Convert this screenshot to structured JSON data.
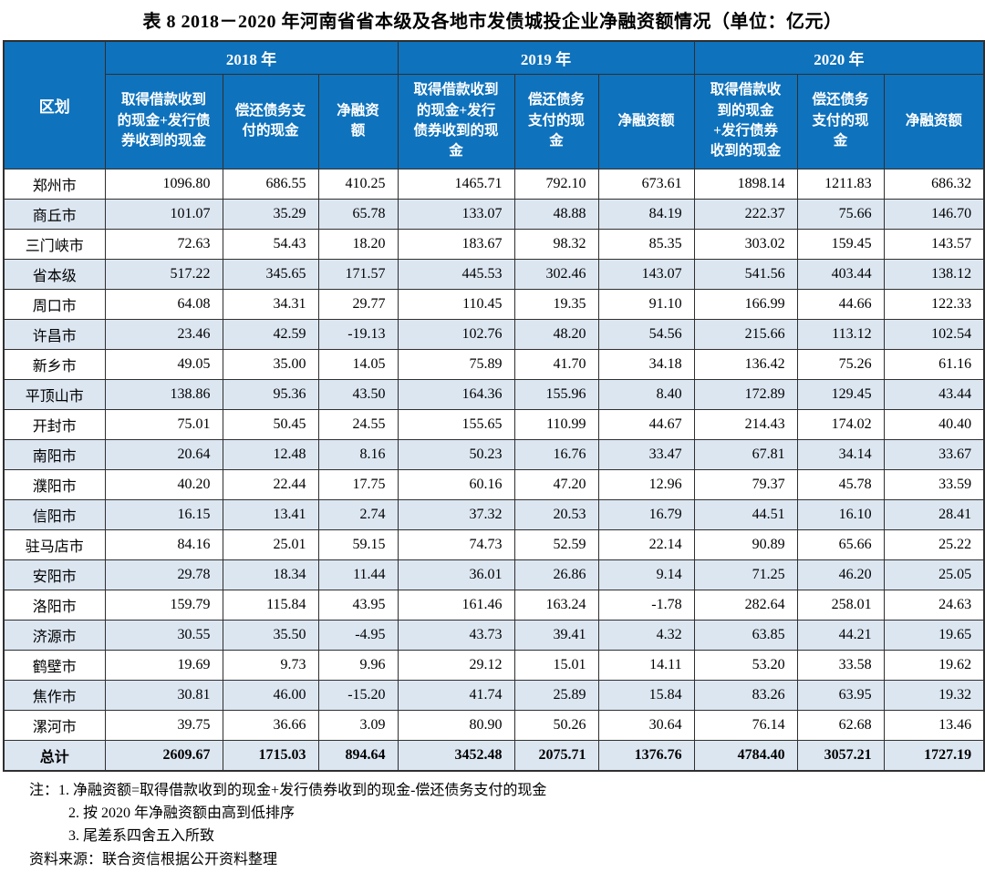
{
  "title": "表 8  2018－2020 年河南省省本级及各地市发债城投企业净融资额情况（单位：亿元）",
  "colors": {
    "header_blue": "#0f72bc",
    "band_row": "#dce6f1",
    "border": "#2f2f2f",
    "header_text": "#ffffff",
    "body_text": "#000000"
  },
  "table": {
    "region_header": "区划",
    "year_groups": [
      "2018 年",
      "2019 年",
      "2020 年"
    ],
    "sub_headers": [
      "取得借款收到的现金+发行债券收到的现金",
      "偿还债务支付的现金",
      "净融资额"
    ],
    "rows": [
      {
        "region": "郑州市",
        "values": [
          "1096.80",
          "686.55",
          "410.25",
          "1465.71",
          "792.10",
          "673.61",
          "1898.14",
          "1211.83",
          "686.32"
        ]
      },
      {
        "region": "商丘市",
        "values": [
          "101.07",
          "35.29",
          "65.78",
          "133.07",
          "48.88",
          "84.19",
          "222.37",
          "75.66",
          "146.70"
        ]
      },
      {
        "region": "三门峡市",
        "values": [
          "72.63",
          "54.43",
          "18.20",
          "183.67",
          "98.32",
          "85.35",
          "303.02",
          "159.45",
          "143.57"
        ]
      },
      {
        "region": "省本级",
        "values": [
          "517.22",
          "345.65",
          "171.57",
          "445.53",
          "302.46",
          "143.07",
          "541.56",
          "403.44",
          "138.12"
        ]
      },
      {
        "region": "周口市",
        "values": [
          "64.08",
          "34.31",
          "29.77",
          "110.45",
          "19.35",
          "91.10",
          "166.99",
          "44.66",
          "122.33"
        ]
      },
      {
        "region": "许昌市",
        "values": [
          "23.46",
          "42.59",
          "-19.13",
          "102.76",
          "48.20",
          "54.56",
          "215.66",
          "113.12",
          "102.54"
        ]
      },
      {
        "region": "新乡市",
        "values": [
          "49.05",
          "35.00",
          "14.05",
          "75.89",
          "41.70",
          "34.18",
          "136.42",
          "75.26",
          "61.16"
        ]
      },
      {
        "region": "平顶山市",
        "values": [
          "138.86",
          "95.36",
          "43.50",
          "164.36",
          "155.96",
          "8.40",
          "172.89",
          "129.45",
          "43.44"
        ]
      },
      {
        "region": "开封市",
        "values": [
          "75.01",
          "50.45",
          "24.55",
          "155.65",
          "110.99",
          "44.67",
          "214.43",
          "174.02",
          "40.40"
        ]
      },
      {
        "region": "南阳市",
        "values": [
          "20.64",
          "12.48",
          "8.16",
          "50.23",
          "16.76",
          "33.47",
          "67.81",
          "34.14",
          "33.67"
        ]
      },
      {
        "region": "濮阳市",
        "values": [
          "40.20",
          "22.44",
          "17.75",
          "60.16",
          "47.20",
          "12.96",
          "79.37",
          "45.78",
          "33.59"
        ]
      },
      {
        "region": "信阳市",
        "values": [
          "16.15",
          "13.41",
          "2.74",
          "37.32",
          "20.53",
          "16.79",
          "44.51",
          "16.10",
          "28.41"
        ]
      },
      {
        "region": "驻马店市",
        "values": [
          "84.16",
          "25.01",
          "59.15",
          "74.73",
          "52.59",
          "22.14",
          "90.89",
          "65.66",
          "25.22"
        ]
      },
      {
        "region": "安阳市",
        "values": [
          "29.78",
          "18.34",
          "11.44",
          "36.01",
          "26.86",
          "9.14",
          "71.25",
          "46.20",
          "25.05"
        ]
      },
      {
        "region": "洛阳市",
        "values": [
          "159.79",
          "115.84",
          "43.95",
          "161.46",
          "163.24",
          "-1.78",
          "282.64",
          "258.01",
          "24.63"
        ]
      },
      {
        "region": "济源市",
        "values": [
          "30.55",
          "35.50",
          "-4.95",
          "43.73",
          "39.41",
          "4.32",
          "63.85",
          "44.21",
          "19.65"
        ]
      },
      {
        "region": "鹤壁市",
        "values": [
          "19.69",
          "9.73",
          "9.96",
          "29.12",
          "15.01",
          "14.11",
          "53.20",
          "33.58",
          "19.62"
        ]
      },
      {
        "region": "焦作市",
        "values": [
          "30.81",
          "46.00",
          "-15.20",
          "41.74",
          "25.89",
          "15.84",
          "83.26",
          "63.95",
          "19.32"
        ]
      },
      {
        "region": "漯河市",
        "values": [
          "39.75",
          "36.66",
          "3.09",
          "80.90",
          "50.26",
          "30.64",
          "76.14",
          "62.68",
          "13.46"
        ]
      }
    ],
    "total": {
      "region": "总计",
      "values": [
        "2609.67",
        "1715.03",
        "894.64",
        "3452.48",
        "2075.71",
        "1376.76",
        "4784.40",
        "3057.21",
        "1727.19"
      ]
    }
  },
  "notes": {
    "label": "注：",
    "items": [
      "1. 净融资额=取得借款收到的现金+发行债券收到的现金-偿还债务支付的现金",
      "2. 按 2020 年净融资额由高到低排序",
      "3. 尾差系四舍五入所致"
    ],
    "source": "资料来源：联合资信根据公开资料整理"
  }
}
